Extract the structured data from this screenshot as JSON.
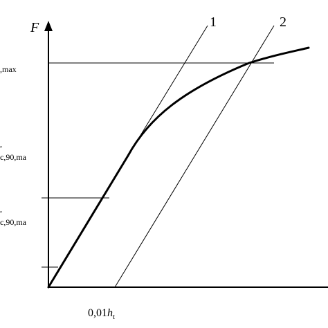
{
  "axis": {
    "y_label": "F"
  },
  "lines": {
    "line1_label": "1",
    "line2_label": "2"
  },
  "levels": {
    "upper_label": ",max",
    "middle_label": "c,90,ma",
    "lower_label": "c,90,ma"
  },
  "x_marker": {
    "prefix": "0,01",
    "var": "h",
    "sub": "t"
  }
}
